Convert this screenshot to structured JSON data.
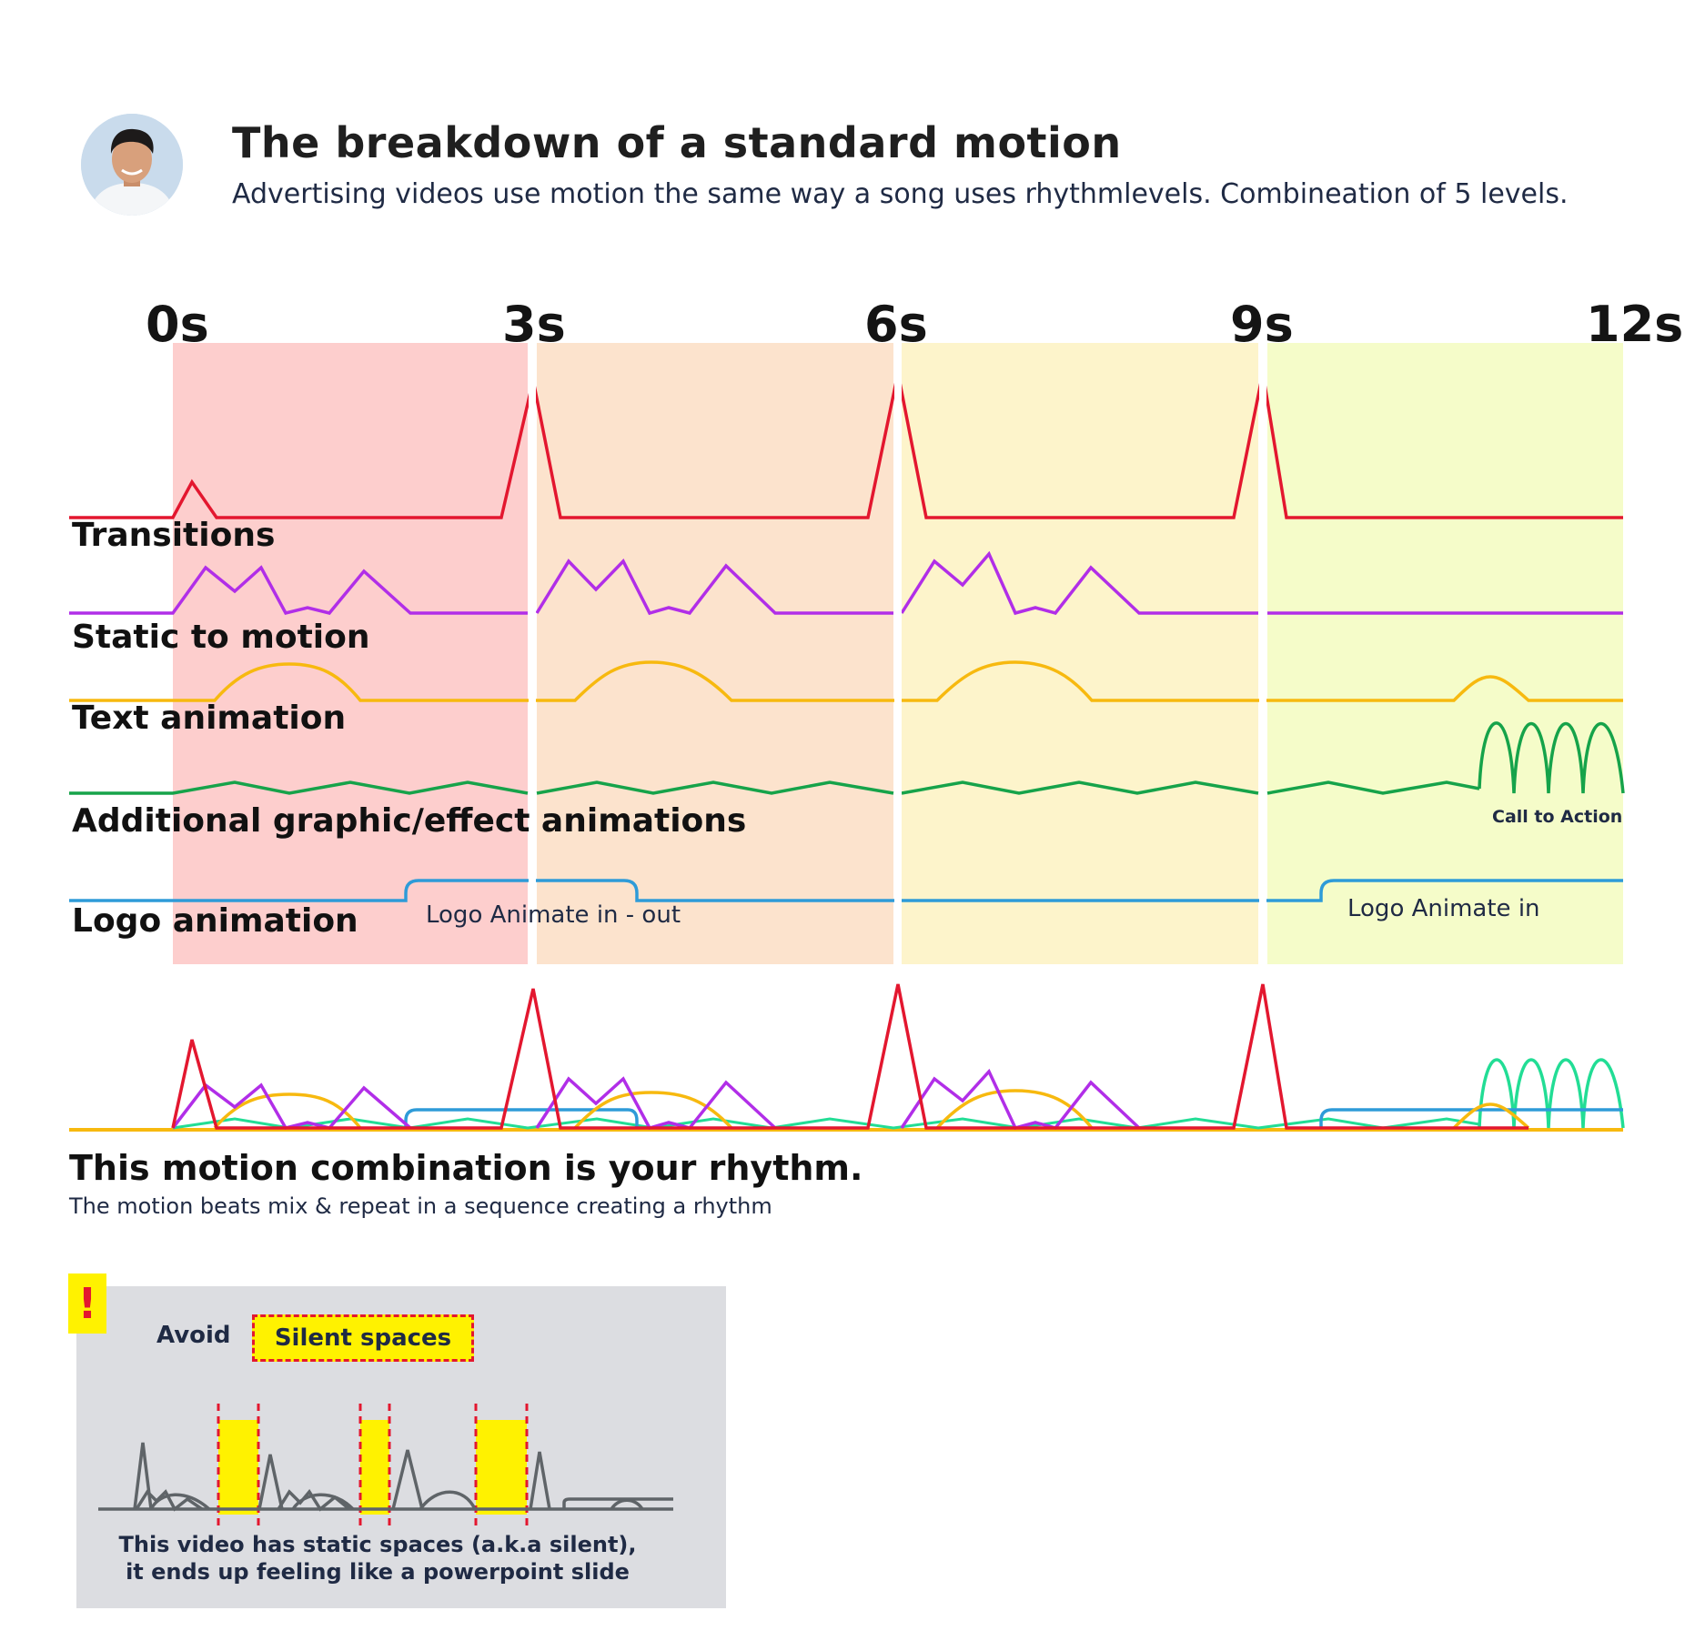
{
  "header": {
    "title": "The breakdown of a standard motion",
    "subtitle": "Advertising videos use motion the same way a song uses rhythmlevels. Combineation of 5 levels."
  },
  "timeline": {
    "ticks": [
      "0s",
      "3s",
      "6s",
      "9s",
      "12s"
    ],
    "segment_colors": [
      "#fdcecd",
      "#fce3cd",
      "#fdf4cb",
      "#f5fcc9"
    ]
  },
  "rows": {
    "transitions": {
      "label": "Transitions",
      "color": "#e3172f"
    },
    "static_to_motion": {
      "label": "Static to motion",
      "color": "#b12ee8"
    },
    "text_animation": {
      "label": "Text animation",
      "color": "#f7b90f"
    },
    "additional": {
      "label": "Additional graphic/effect animations",
      "color": "#16a34a",
      "cta_label": "Call to Action"
    },
    "logo": {
      "label": "Logo animation",
      "color": "#2e9bd8",
      "segment1_label": "Logo Animate in - out",
      "segment2_label": "Logo Animate in"
    }
  },
  "combination": {
    "title": "This motion combination is your rhythm.",
    "subtitle": "The motion beats mix & repeat in a sequence creating a rhythm"
  },
  "warning": {
    "icon": "!",
    "avoid": "Avoid",
    "highlight": "Silent spaces",
    "note_line1": "This video has static spaces (a.k.a silent),",
    "note_line2": "it ends up feeling like a powerpoint slide"
  }
}
